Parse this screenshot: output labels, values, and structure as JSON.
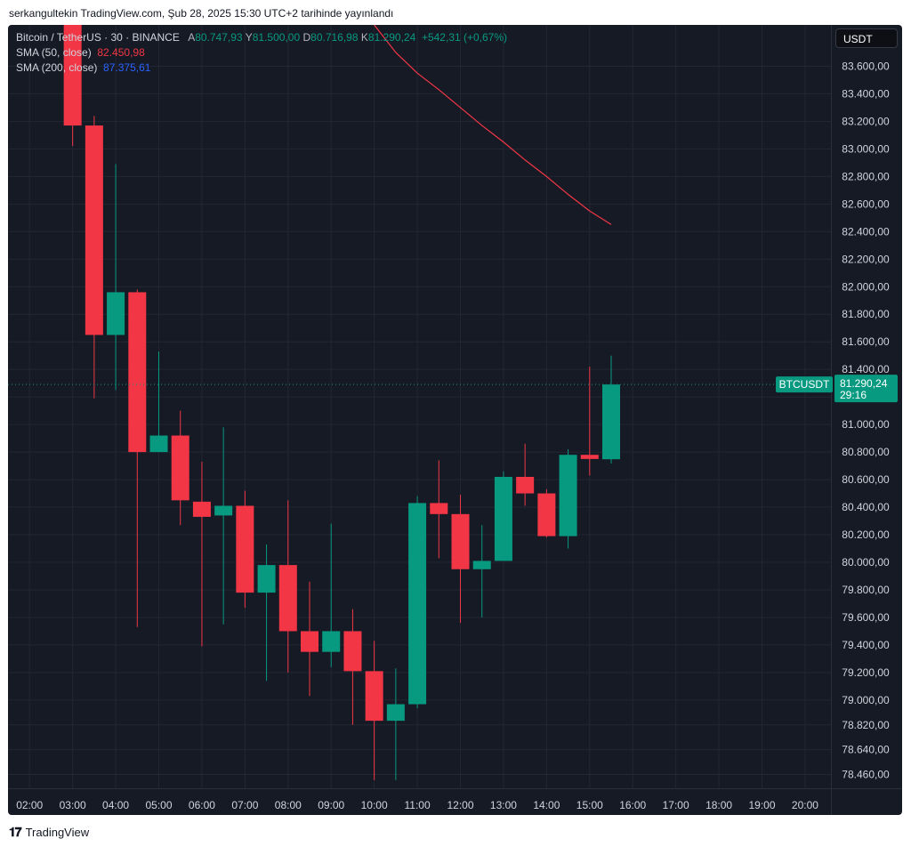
{
  "byline": "serkangultekin TradingView.com, Şub 28, 2025 15:30 UTC+2 tarihinde yayınlandı",
  "legend": {
    "symbol": "Bitcoin / TetherUS · 30 · BINANCE",
    "open_label": "A",
    "open": "80.747,93",
    "high_label": "Y",
    "high": "81.500,00",
    "low_label": "D",
    "low": "80.716,98",
    "close_label": "K",
    "close": "81.290,24",
    "change": "+542,31 (+0,67%)",
    "sma50_label": "SMA (50, close)",
    "sma50_value": "82.450,98",
    "sma200_label": "SMA (200, close)",
    "sma200_value": "87.375,61"
  },
  "currency": "USDT",
  "price_tag": {
    "symbol": "BTCUSDT",
    "price": "81.290,24",
    "countdown": "29:16"
  },
  "footer": {
    "logo_text": "𝟏𝟕",
    "brand": "TradingView"
  },
  "colors": {
    "up": "#089981",
    "down": "#f23645",
    "sma50": "#f23645",
    "sma200": "#2962ff",
    "background": "#161a25"
  },
  "chart_data": {
    "type": "candlestick",
    "symbol": "BTCUSDT",
    "interval": "30",
    "x_ticks": [
      "02:00",
      "03:00",
      "04:00",
      "05:00",
      "06:00",
      "07:00",
      "08:00",
      "09:00",
      "10:00",
      "11:00",
      "12:00",
      "13:00",
      "14:00",
      "15:00",
      "16:00",
      "17:00",
      "18:00",
      "19:00",
      "20:00"
    ],
    "y_ticks": [
      "78.460,00",
      "78.640,00",
      "78.820,00",
      "79.000,00",
      "79.200,00",
      "79.400,00",
      "79.600,00",
      "79.800,00",
      "80.000,00",
      "80.200,00",
      "80.400,00",
      "80.600,00",
      "80.800,00",
      "81.000,00",
      "81.200,00",
      "81.400,00",
      "81.600,00",
      "81.800,00",
      "82.000,00",
      "82.200,00",
      "82.400,00",
      "82.600,00",
      "82.800,00",
      "83.000,00",
      "83.200,00",
      "83.400,00",
      "83.600,00"
    ],
    "y_tick_values": [
      78460,
      78640,
      78820,
      79000,
      79200,
      79400,
      79600,
      79800,
      80000,
      80200,
      80400,
      80600,
      80800,
      81000,
      81200,
      81400,
      81600,
      81800,
      82000,
      82200,
      82400,
      82600,
      82800,
      83000,
      83200,
      83400,
      83600
    ],
    "ylim": [
      78360,
      83900
    ],
    "candles": [
      {
        "time": "03:00",
        "open": 83900,
        "high": 83900,
        "low": 83020,
        "close": 83170
      },
      {
        "time": "03:30",
        "open": 83170,
        "high": 83240,
        "low": 81190,
        "close": 81650
      },
      {
        "time": "04:00",
        "open": 81650,
        "high": 82890,
        "low": 81250,
        "close": 81960
      },
      {
        "time": "04:30",
        "open": 81960,
        "high": 81980,
        "low": 79530,
        "close": 80800
      },
      {
        "time": "05:00",
        "open": 80800,
        "high": 81530,
        "low": 80800,
        "close": 80920
      },
      {
        "time": "05:30",
        "open": 80920,
        "high": 81100,
        "low": 80270,
        "close": 80450
      },
      {
        "time": "06:00",
        "open": 80440,
        "high": 80730,
        "low": 79390,
        "close": 80330
      },
      {
        "time": "06:30",
        "open": 80340,
        "high": 80980,
        "low": 79550,
        "close": 80410
      },
      {
        "time": "07:00",
        "open": 80410,
        "high": 80520,
        "low": 79670,
        "close": 79780
      },
      {
        "time": "07:30",
        "open": 79780,
        "high": 80130,
        "low": 79140,
        "close": 79980
      },
      {
        "time": "08:00",
        "open": 79980,
        "high": 80450,
        "low": 79200,
        "close": 79500
      },
      {
        "time": "08:30",
        "open": 79500,
        "high": 79860,
        "low": 79030,
        "close": 79350
      },
      {
        "time": "09:00",
        "open": 79350,
        "high": 80280,
        "low": 79240,
        "close": 79500
      },
      {
        "time": "09:30",
        "open": 79500,
        "high": 79660,
        "low": 78820,
        "close": 79210
      },
      {
        "time": "10:00",
        "open": 79210,
        "high": 79430,
        "low": 78420,
        "close": 78850
      },
      {
        "time": "10:30",
        "open": 78850,
        "high": 79230,
        "low": 78420,
        "close": 78970
      },
      {
        "time": "11:00",
        "open": 78970,
        "high": 80480,
        "low": 78940,
        "close": 80430
      },
      {
        "time": "11:30",
        "open": 80430,
        "high": 80740,
        "low": 80030,
        "close": 80350
      },
      {
        "time": "12:00",
        "open": 80350,
        "high": 80490,
        "low": 79560,
        "close": 79950
      },
      {
        "time": "12:30",
        "open": 79950,
        "high": 80270,
        "low": 79600,
        "close": 80010
      },
      {
        "time": "13:00",
        "open": 80010,
        "high": 80660,
        "low": 80010,
        "close": 80620
      },
      {
        "time": "13:30",
        "open": 80620,
        "high": 80860,
        "low": 80410,
        "close": 80500
      },
      {
        "time": "14:00",
        "open": 80500,
        "high": 80530,
        "low": 80180,
        "close": 80190
      },
      {
        "time": "14:30",
        "open": 80190,
        "high": 80820,
        "low": 80100,
        "close": 80780
      },
      {
        "time": "15:00",
        "open": 80780,
        "high": 81420,
        "low": 80630,
        "close": 80750
      },
      {
        "time": "15:30",
        "open": 80747.93,
        "high": 81500,
        "low": 80716.98,
        "close": 81290.24
      }
    ],
    "sma50": [
      {
        "time": "10:00",
        "value": 83900
      },
      {
        "time": "10:30",
        "value": 83700
      },
      {
        "time": "11:00",
        "value": 83550
      },
      {
        "time": "11:30",
        "value": 83430
      },
      {
        "time": "12:00",
        "value": 83300
      },
      {
        "time": "12:30",
        "value": 83170
      },
      {
        "time": "13:00",
        "value": 83050
      },
      {
        "time": "13:30",
        "value": 82920
      },
      {
        "time": "14:00",
        "value": 82800
      },
      {
        "time": "14:30",
        "value": 82670
      },
      {
        "time": "15:00",
        "value": 82550
      },
      {
        "time": "15:30",
        "value": 82450.98
      }
    ]
  }
}
